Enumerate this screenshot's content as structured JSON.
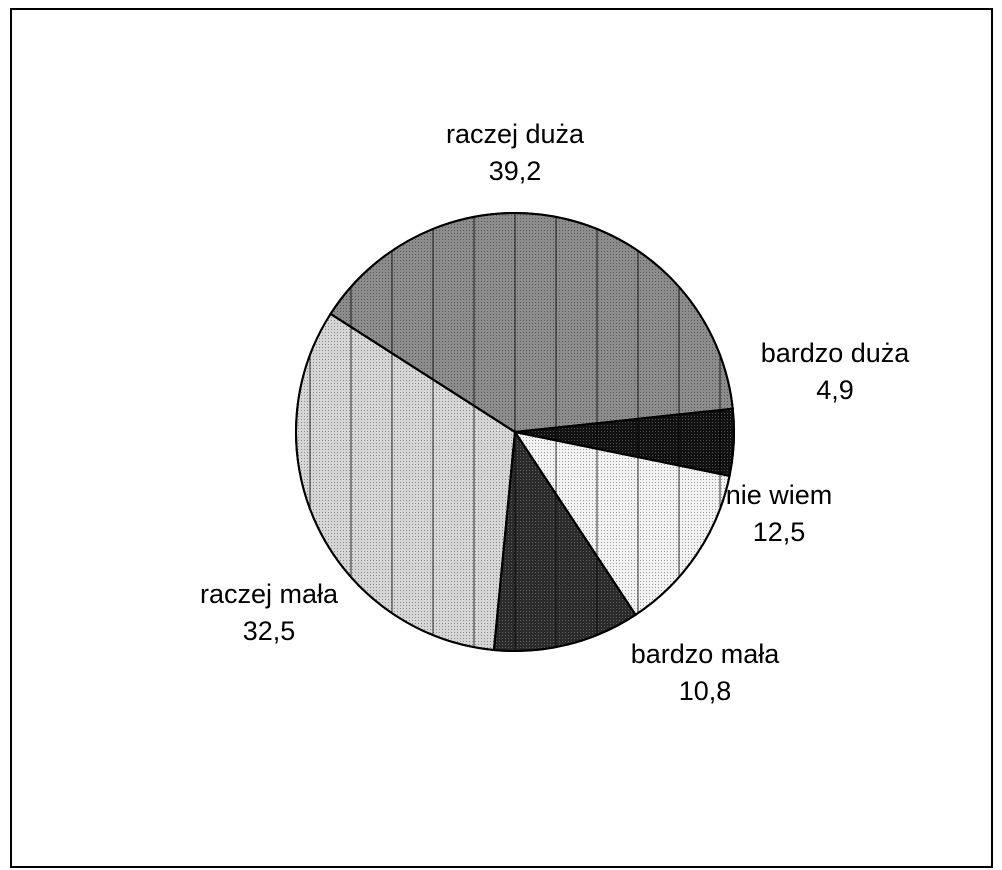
{
  "chart_data": {
    "type": "pie",
    "title": "",
    "slices": [
      {
        "label": "bardzo duża",
        "value": 4.9,
        "display": "4,9",
        "pattern": "dots-black"
      },
      {
        "label": "nie wiem",
        "value": 12.5,
        "display": "12,5",
        "pattern": "dots-light"
      },
      {
        "label": "bardzo mała",
        "value": 10.8,
        "display": "10,8",
        "pattern": "dots-dark"
      },
      {
        "label": "raczej mała",
        "value": 32.5,
        "display": "32,5",
        "pattern": "dots-lighter"
      },
      {
        "label": "raczej duża",
        "value": 39.2,
        "display": "39,2",
        "pattern": "dots-medium"
      }
    ],
    "start_angle_deg": 6.1,
    "direction": "clockwise",
    "legend": "none",
    "vertical_hatch": true
  },
  "colors": {
    "dots-black": "#111111",
    "dots-light": "#f2f2f2",
    "dots-dark": "#2b2b2b",
    "dots-lighter": "#d6d6d6",
    "dots-medium": "#8c8c8c",
    "outline": "#000000"
  }
}
